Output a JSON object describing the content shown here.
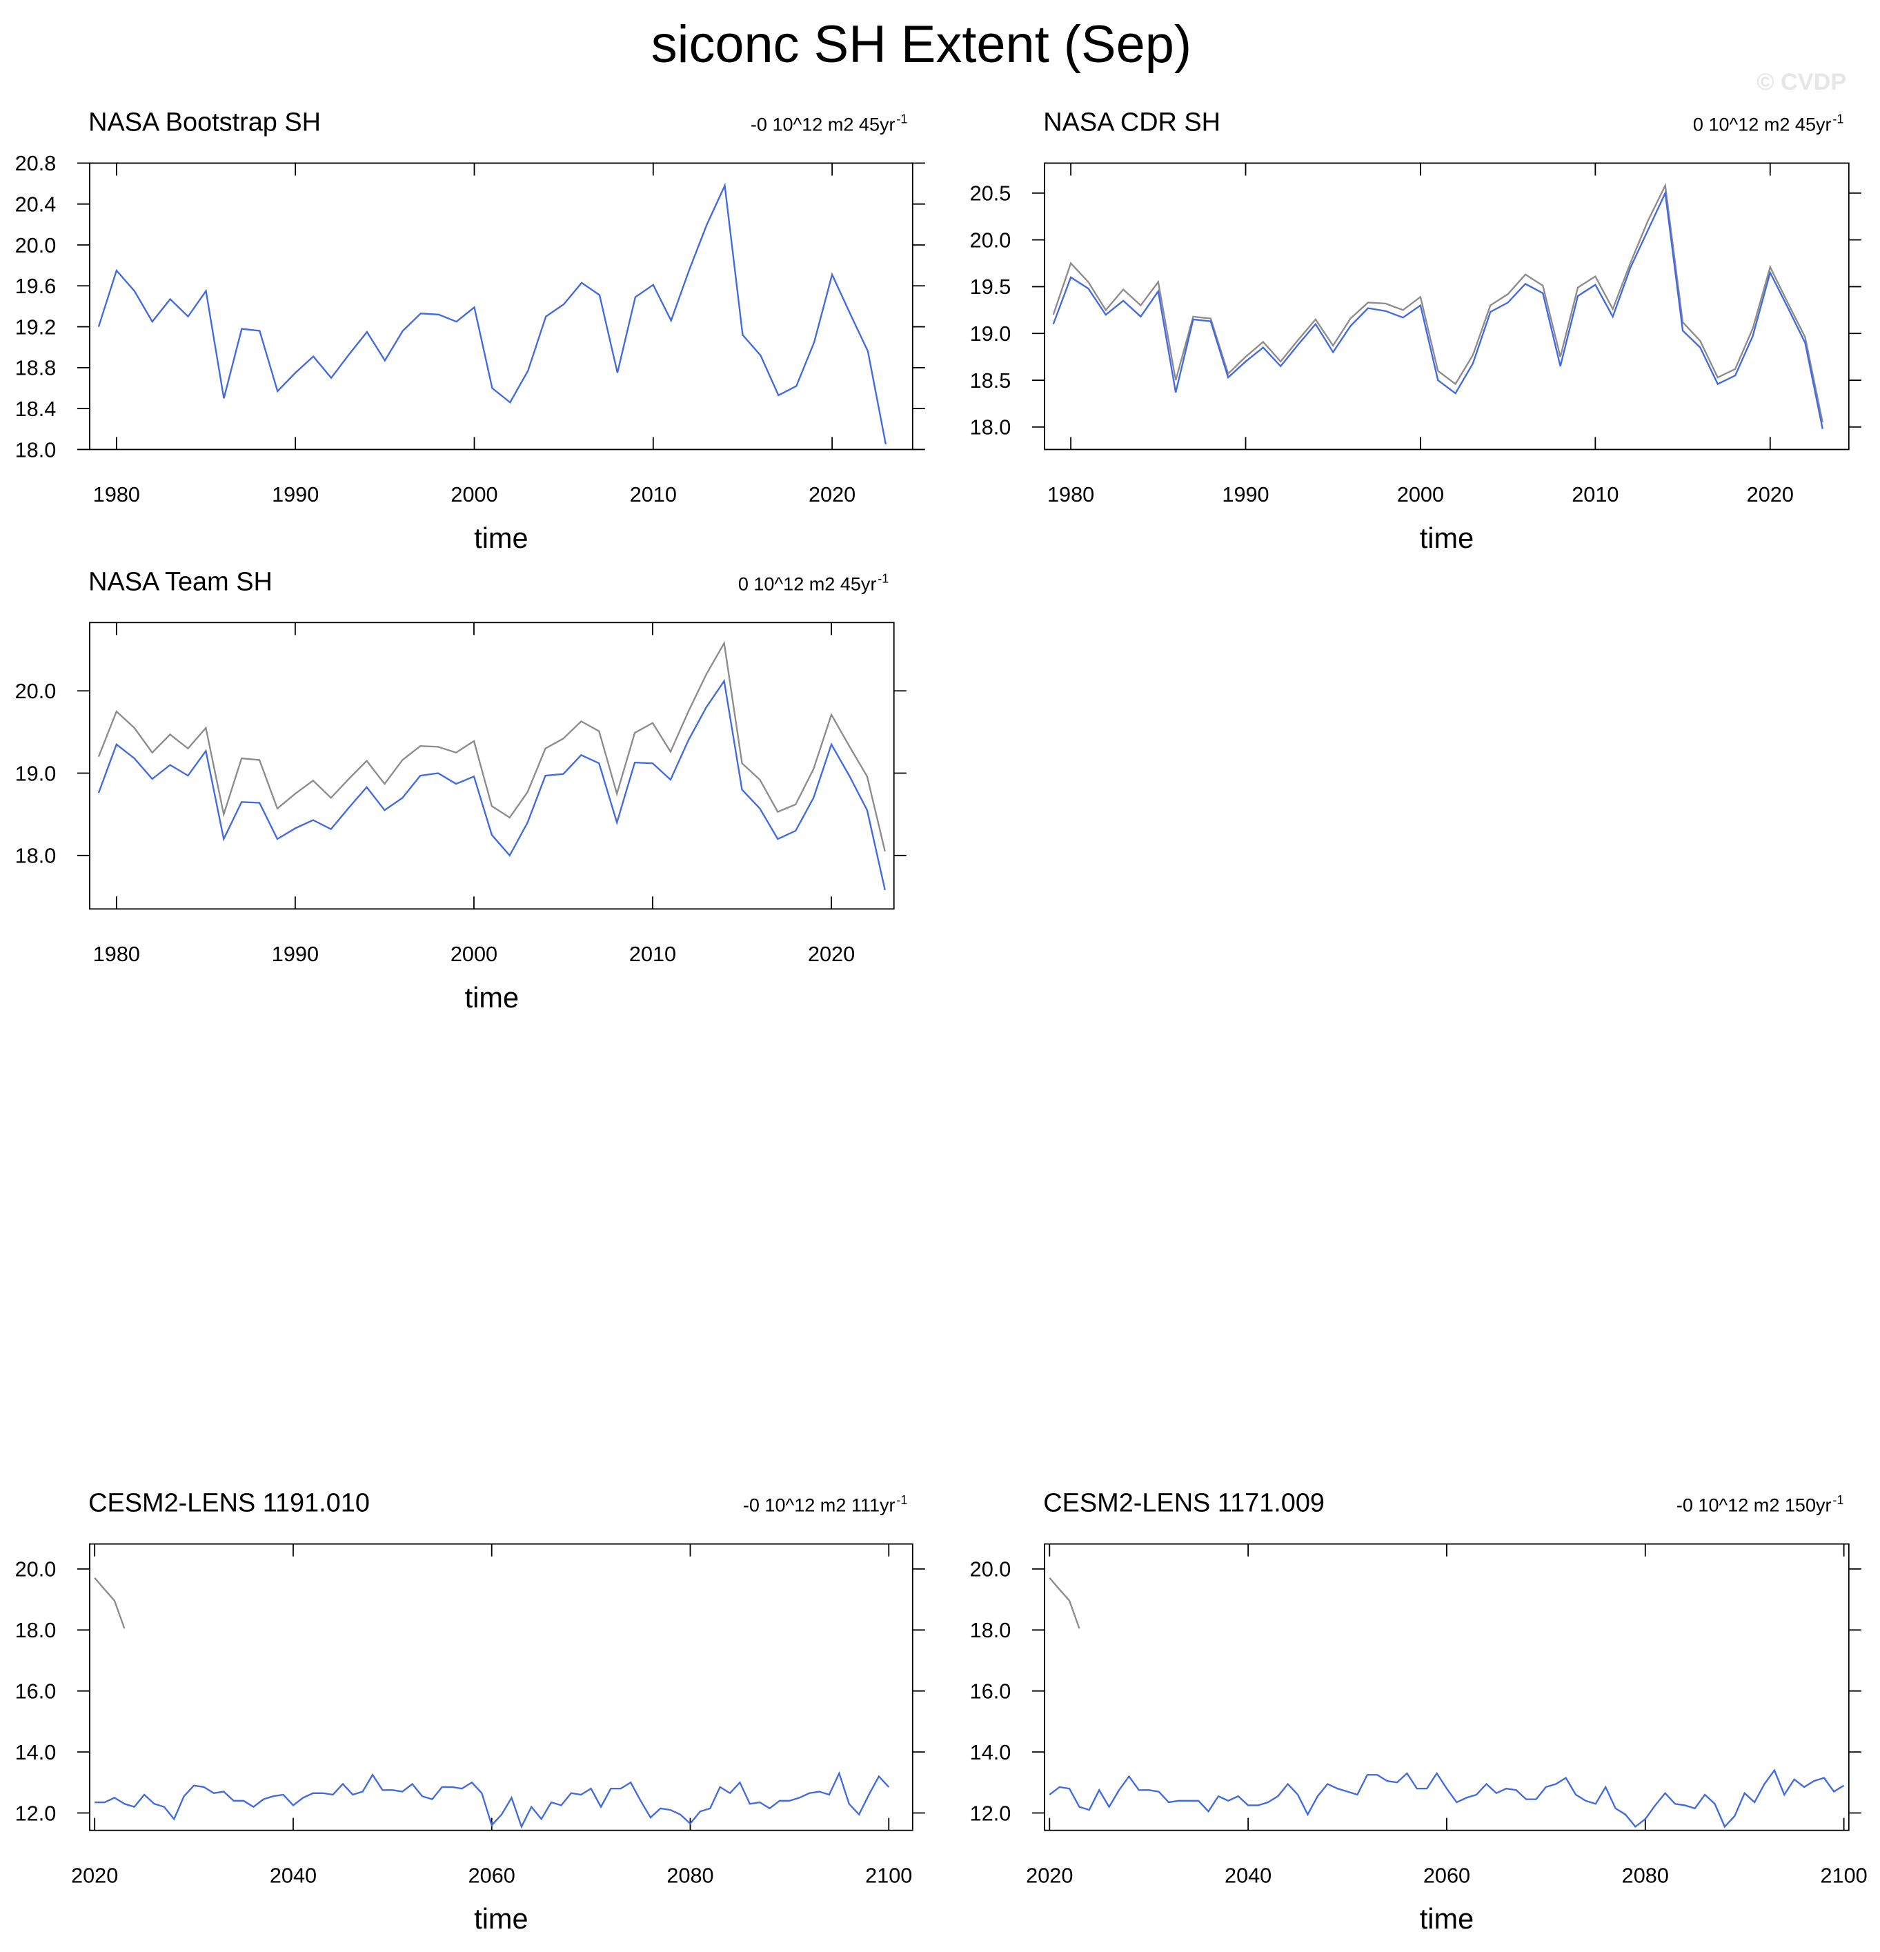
{
  "title": "siconc SH Extent (Sep)",
  "watermark": "© CVDP",
  "chart_data": [
    {
      "type": "line",
      "title": "NASA Bootstrap SH",
      "trend": "-0 10^12 m2 45yr",
      "trend_exp": "-1",
      "xlabel": "time",
      "x": [
        1979,
        1980,
        1981,
        1982,
        1983,
        1984,
        1985,
        1986,
        1987,
        1988,
        1989,
        1990,
        1991,
        1992,
        1993,
        1994,
        1995,
        1996,
        1997,
        1998,
        1999,
        2000,
        2001,
        2002,
        2003,
        2004,
        2005,
        2006,
        2007,
        2008,
        2009,
        2010,
        2011,
        2012,
        2013,
        2014,
        2015,
        2016,
        2017,
        2018,
        2019,
        2020,
        2021,
        2022,
        2023
      ],
      "series": [
        {
          "color": "#4169e1",
          "values": [
            19.2,
            19.75,
            19.55,
            19.25,
            19.47,
            19.3,
            19.55,
            18.5,
            19.18,
            19.16,
            18.57,
            18.75,
            18.91,
            18.7,
            18.93,
            19.15,
            18.87,
            19.16,
            19.33,
            19.32,
            19.25,
            19.39,
            18.6,
            18.46,
            18.77,
            19.3,
            19.42,
            19.63,
            19.51,
            18.75,
            19.49,
            19.61,
            19.26,
            19.75,
            20.2,
            20.58,
            19.12,
            18.92,
            18.53,
            18.62,
            19.05,
            19.71,
            19.33,
            18.96,
            18.05
          ]
        }
      ],
      "xlim": [
        1978.5,
        2024.5
      ],
      "ylim": [
        18.0,
        20.8
      ],
      "xticks": [
        1980,
        1990,
        2000,
        2010,
        2020
      ],
      "yticks": [
        {
          "value": 18,
          "label": "18.0"
        },
        18.4,
        18.8,
        19.2,
        19.6,
        {
          "value": 20,
          "label": "20.0"
        },
        20.4,
        20.8
      ]
    },
    {
      "type": "line",
      "title": "NASA CDR SH",
      "trend": "0 10^12 m2 45yr",
      "trend_exp": "-1",
      "xlabel": "time",
      "x": [
        1979,
        1980,
        1981,
        1982,
        1983,
        1984,
        1985,
        1986,
        1987,
        1988,
        1989,
        1990,
        1991,
        1992,
        1993,
        1994,
        1995,
        1996,
        1997,
        1998,
        1999,
        2000,
        2001,
        2002,
        2003,
        2004,
        2005,
        2006,
        2007,
        2008,
        2009,
        2010,
        2011,
        2012,
        2013,
        2014,
        2015,
        2016,
        2017,
        2018,
        2019,
        2020,
        2021,
        2022,
        2023
      ],
      "series": [
        {
          "color": "#8c8c8c",
          "values": [
            19.2,
            19.75,
            19.55,
            19.25,
            19.47,
            19.3,
            19.55,
            18.5,
            19.18,
            19.16,
            18.57,
            18.75,
            18.91,
            18.7,
            18.93,
            19.15,
            18.87,
            19.16,
            19.33,
            19.32,
            19.25,
            19.39,
            18.6,
            18.46,
            18.77,
            19.3,
            19.42,
            19.63,
            19.51,
            18.75,
            19.49,
            19.61,
            19.26,
            19.75,
            20.2,
            20.58,
            19.12,
            18.92,
            18.53,
            18.62,
            19.05,
            19.71,
            19.33,
            18.96,
            18.05
          ]
        },
        {
          "color": "#4169e1",
          "values": [
            19.1,
            19.6,
            19.48,
            19.2,
            19.35,
            19.18,
            19.45,
            18.37,
            19.15,
            19.13,
            18.53,
            18.7,
            18.85,
            18.65,
            18.88,
            19.1,
            18.8,
            19.08,
            19.27,
            19.24,
            19.17,
            19.3,
            18.5,
            18.36,
            18.68,
            19.23,
            19.33,
            19.53,
            19.43,
            18.65,
            19.4,
            19.52,
            19.18,
            19.7,
            20.1,
            20.5,
            19.03,
            18.85,
            18.46,
            18.55,
            18.97,
            19.65,
            19.28,
            18.9,
            17.98
          ]
        }
      ],
      "xlim": [
        1978.5,
        2024.5
      ],
      "ylim": [
        17.76,
        20.82
      ],
      "xticks": [
        1980,
        1990,
        2000,
        2010,
        2020
      ],
      "yticks": [
        {
          "value": 18,
          "label": "18.0"
        },
        18.5,
        {
          "value": 19,
          "label": "19.0"
        },
        19.5,
        {
          "value": 20,
          "label": "20.0"
        },
        20.5
      ]
    },
    {
      "type": "line",
      "title": "NASA Team SH",
      "trend": "0 10^12 m2 45yr",
      "trend_exp": "-1",
      "xlabel": "time",
      "x": [
        1979,
        1980,
        1981,
        1982,
        1983,
        1984,
        1985,
        1986,
        1987,
        1988,
        1989,
        1990,
        1991,
        1992,
        1993,
        1994,
        1995,
        1996,
        1997,
        1998,
        1999,
        2000,
        2001,
        2002,
        2003,
        2004,
        2005,
        2006,
        2007,
        2008,
        2009,
        2010,
        2011,
        2012,
        2013,
        2014,
        2015,
        2016,
        2017,
        2018,
        2019,
        2020,
        2021,
        2022,
        2023
      ],
      "series": [
        {
          "color": "#8c8c8c",
          "values": [
            19.2,
            19.75,
            19.55,
            19.25,
            19.47,
            19.3,
            19.55,
            18.5,
            19.18,
            19.16,
            18.57,
            18.75,
            18.91,
            18.7,
            18.93,
            19.15,
            18.87,
            19.16,
            19.33,
            19.32,
            19.25,
            19.39,
            18.6,
            18.46,
            18.77,
            19.3,
            19.42,
            19.63,
            19.51,
            18.75,
            19.49,
            19.61,
            19.26,
            19.75,
            20.2,
            20.58,
            19.12,
            18.92,
            18.53,
            18.62,
            19.05,
            19.71,
            19.33,
            18.96,
            18.05
          ]
        },
        {
          "color": "#4169e1",
          "values": [
            18.76,
            19.35,
            19.18,
            18.93,
            19.1,
            18.97,
            19.27,
            18.2,
            18.65,
            18.64,
            18.2,
            18.33,
            18.43,
            18.32,
            18.58,
            18.83,
            18.55,
            18.7,
            18.97,
            19.0,
            18.87,
            18.96,
            18.25,
            18.0,
            18.4,
            18.97,
            18.99,
            19.22,
            19.12,
            18.4,
            19.13,
            19.12,
            18.92,
            19.4,
            19.8,
            20.12,
            18.8,
            18.57,
            18.2,
            18.3,
            18.7,
            19.35,
            18.97,
            18.55,
            17.58
          ]
        }
      ],
      "xlim": [
        1978.5,
        2023.5
      ],
      "ylim": [
        17.35,
        20.83
      ],
      "xticks": [
        1980,
        1990,
        2000,
        2010,
        2020
      ],
      "yticks": [
        {
          "value": 18,
          "label": "18.0"
        },
        {
          "value": 19,
          "label": "19.0"
        },
        {
          "value": 20,
          "label": "20.0"
        }
      ]
    },
    {
      "type": "line",
      "title": "CESM2-LENS 1191.010",
      "trend": "-0 10^12 m2 111yr",
      "trend_exp": "-1",
      "xlabel": "time",
      "series": [
        {
          "color": "#8c8c8c",
          "x": [
            2020,
            2021,
            2022,
            2023
          ],
          "values": [
            19.71,
            19.33,
            18.96,
            18.05
          ]
        },
        {
          "color": "#4169e1",
          "x": [
            2020,
            2021,
            2022,
            2023,
            2024,
            2025,
            2026,
            2027,
            2028,
            2029,
            2030,
            2031,
            2032,
            2033,
            2034,
            2035,
            2036,
            2037,
            2038,
            2039,
            2040,
            2041,
            2042,
            2043,
            2044,
            2045,
            2046,
            2047,
            2048,
            2049,
            2050,
            2051,
            2052,
            2053,
            2054,
            2055,
            2056,
            2057,
            2058,
            2059,
            2060,
            2061,
            2062,
            2063,
            2064,
            2065,
            2066,
            2067,
            2068,
            2069,
            2070,
            2071,
            2072,
            2073,
            2074,
            2075,
            2076,
            2077,
            2078,
            2079,
            2080,
            2081,
            2082,
            2083,
            2084,
            2085,
            2086,
            2087,
            2088,
            2089,
            2090,
            2091,
            2092,
            2093,
            2094,
            2095,
            2096,
            2097,
            2098,
            2099,
            2100
          ],
          "values": [
            12.35,
            12.35,
            12.5,
            12.3,
            12.2,
            12.6,
            12.3,
            12.2,
            11.8,
            12.55,
            12.9,
            12.85,
            12.65,
            12.7,
            12.4,
            12.4,
            12.2,
            12.45,
            12.55,
            12.6,
            12.25,
            12.5,
            12.65,
            12.65,
            12.6,
            12.95,
            12.6,
            12.7,
            13.25,
            12.75,
            12.75,
            12.7,
            12.95,
            12.55,
            12.45,
            12.85,
            12.85,
            12.8,
            13.0,
            12.65,
            11.6,
            11.95,
            12.5,
            11.55,
            12.2,
            11.8,
            12.35,
            12.25,
            12.65,
            12.6,
            12.8,
            12.2,
            12.8,
            12.8,
            13.0,
            12.4,
            11.85,
            12.15,
            12.1,
            11.95,
            11.65,
            12.05,
            12.15,
            12.85,
            12.65,
            13.0,
            12.3,
            12.35,
            12.15,
            12.4,
            12.4,
            12.5,
            12.65,
            12.7,
            12.6,
            13.3,
            12.3,
            11.95,
            12.6,
            13.2,
            12.85
          ]
        }
      ],
      "xlim": [
        2019.5,
        2102.4
      ],
      "ylim": [
        11.43,
        20.82
      ],
      "xticks": [
        2020,
        2040,
        2060,
        2080,
        2100
      ],
      "yticks": [
        {
          "value": 12,
          "label": "12.0"
        },
        {
          "value": 14,
          "label": "14.0"
        },
        {
          "value": 16,
          "label": "16.0"
        },
        {
          "value": 18,
          "label": "18.0"
        },
        {
          "value": 20,
          "label": "20.0"
        }
      ]
    },
    {
      "type": "line",
      "title": "CESM2-LENS 1171.009",
      "trend": "-0 10^12 m2 150yr",
      "trend_exp": "-1",
      "xlabel": "time",
      "series": [
        {
          "color": "#8c8c8c",
          "x": [
            2020,
            2021,
            2022,
            2023
          ],
          "values": [
            19.71,
            19.33,
            18.96,
            18.05
          ]
        },
        {
          "color": "#4169e1",
          "x": [
            2020,
            2021,
            2022,
            2023,
            2024,
            2025,
            2026,
            2027,
            2028,
            2029,
            2030,
            2031,
            2032,
            2033,
            2034,
            2035,
            2036,
            2037,
            2038,
            2039,
            2040,
            2041,
            2042,
            2043,
            2044,
            2045,
            2046,
            2047,
            2048,
            2049,
            2050,
            2051,
            2052,
            2053,
            2054,
            2055,
            2056,
            2057,
            2058,
            2059,
            2060,
            2061,
            2062,
            2063,
            2064,
            2065,
            2066,
            2067,
            2068,
            2069,
            2070,
            2071,
            2072,
            2073,
            2074,
            2075,
            2076,
            2077,
            2078,
            2079,
            2080,
            2081,
            2082,
            2083,
            2084,
            2085,
            2086,
            2087,
            2088,
            2089,
            2090,
            2091,
            2092,
            2093,
            2094,
            2095,
            2096,
            2097,
            2098,
            2099,
            2100
          ],
          "values": [
            12.6,
            12.85,
            12.8,
            12.2,
            12.1,
            12.75,
            12.2,
            12.75,
            13.2,
            12.75,
            12.75,
            12.7,
            12.35,
            12.4,
            12.4,
            12.4,
            12.05,
            12.55,
            12.4,
            12.55,
            12.25,
            12.25,
            12.35,
            12.55,
            12.95,
            12.6,
            11.95,
            12.55,
            12.95,
            12.8,
            12.7,
            12.6,
            13.25,
            13.25,
            13.05,
            13.0,
            13.3,
            12.8,
            12.8,
            13.3,
            12.8,
            12.35,
            12.5,
            12.6,
            12.95,
            12.65,
            12.8,
            12.75,
            12.45,
            12.45,
            12.85,
            12.95,
            13.15,
            12.6,
            12.4,
            12.3,
            12.85,
            12.15,
            11.95,
            11.55,
            11.8,
            12.25,
            12.65,
            12.3,
            12.25,
            12.15,
            12.6,
            12.3,
            11.55,
            11.9,
            12.65,
            12.35,
            12.95,
            13.4,
            12.6,
            13.1,
            12.85,
            13.05,
            13.15,
            12.7,
            12.9
          ]
        }
      ],
      "xlim": [
        2019.5,
        2100.5
      ],
      "ylim": [
        11.43,
        20.82
      ],
      "xticks": [
        2020,
        2040,
        2060,
        2080,
        2100
      ],
      "yticks": [
        {
          "value": 12,
          "label": "12.0"
        },
        {
          "value": 14,
          "label": "14.0"
        },
        {
          "value": 16,
          "label": "16.0"
        },
        {
          "value": 18,
          "label": "18.0"
        },
        {
          "value": 20,
          "label": "20.0"
        }
      ]
    }
  ]
}
